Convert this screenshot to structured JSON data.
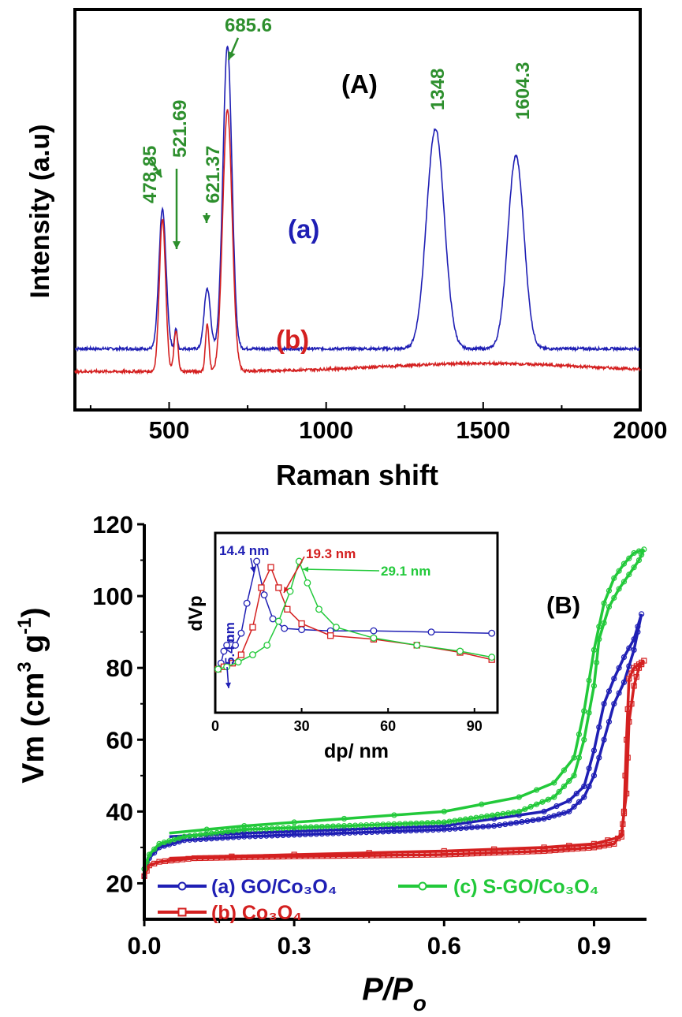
{
  "chart_data": [
    {
      "type": "line",
      "panel_label": "(A)",
      "xlabel": "Raman shift",
      "ylabel": "Intensity (a.u)",
      "xlim": [
        200,
        2000
      ],
      "x_ticks": [
        "500",
        "1000",
        "1500",
        "2000"
      ],
      "grid": false,
      "series": [
        {
          "name": "(a)",
          "color": "#1f1fb4",
          "baseline": 0.42,
          "peaks": [
            {
              "center": 478.85,
              "height": 2.08,
              "width": 16
            },
            {
              "center": 521.69,
              "height": 0.3,
              "width": 6
            },
            {
              "center": 621.37,
              "height": 0.9,
              "width": 14
            },
            {
              "center": 685.6,
              "height": 4.53,
              "width": 20
            },
            {
              "center": 1348,
              "height": 3.28,
              "width": 40
            },
            {
              "center": 1604.3,
              "height": 2.88,
              "width": 36
            }
          ]
        },
        {
          "name": "(b)",
          "color": "#d42020",
          "baseline": 0.08,
          "peaks": [
            {
              "center": 478.85,
              "height": 2.28,
              "width": 14
            },
            {
              "center": 521.69,
              "height": 0.6,
              "width": 9
            },
            {
              "center": 621.37,
              "height": 0.7,
              "width": 8
            },
            {
              "center": 685.6,
              "height": 3.9,
              "width": 21
            }
          ]
        }
      ],
      "annotations": [
        {
          "text": "478.85",
          "x": 478.85,
          "color": "#2d8f2d"
        },
        {
          "text": "521.69",
          "x": 521.69,
          "color": "#2d8f2d"
        },
        {
          "text": "621.37",
          "x": 621.37,
          "color": "#2d8f2d"
        },
        {
          "text": "685.6",
          "x": 685.6,
          "color": "#2d8f2d"
        },
        {
          "text": "1348",
          "x": 1348,
          "color": "#2d8f2d"
        },
        {
          "text": "1604.3",
          "x": 1604.3,
          "color": "#2d8f2d"
        }
      ]
    },
    {
      "type": "line",
      "panel_label": "(B)",
      "xlabel": "P/P",
      "xlabel_sub": "o",
      "ylabel": "Vm (cm",
      "ylabel_sup3": "3",
      "ylabel_mid": " g",
      "ylabel_sup": "-1",
      "ylabel_end": ")",
      "xlim": [
        0,
        1
      ],
      "ylim": [
        10,
        120
      ],
      "x_ticks": [
        "0.0",
        "0.3",
        "0.6",
        "0.9"
      ],
      "y_ticks": [
        "20",
        "40",
        "60",
        "80",
        "100",
        "120"
      ],
      "grid": false,
      "series": [
        {
          "name": "(a) GO/Co₃O₄",
          "color": "#1f1fb4",
          "adsorption": [
            [
              0,
              22
            ],
            [
              0.01,
              27
            ],
            [
              0.03,
              30
            ],
            [
              0.08,
              32
            ],
            [
              0.2,
              33
            ],
            [
              0.4,
              34
            ],
            [
              0.6,
              35
            ],
            [
              0.7,
              36
            ],
            [
              0.8,
              38
            ],
            [
              0.85,
              40
            ],
            [
              0.88,
              44
            ],
            [
              0.9,
              50
            ],
            [
              0.92,
              60
            ],
            [
              0.94,
              70
            ],
            [
              0.96,
              76
            ],
            [
              0.98,
              85
            ],
            [
              0.995,
              95
            ]
          ],
          "desorption": [
            [
              0.995,
              95
            ],
            [
              0.98,
              88
            ],
            [
              0.96,
              83
            ],
            [
              0.94,
              77
            ],
            [
              0.92,
              70
            ],
            [
              0.9,
              57
            ],
            [
              0.88,
              47
            ],
            [
              0.85,
              43
            ],
            [
              0.8,
              40
            ],
            [
              0.7,
              38
            ],
            [
              0.6,
              36
            ],
            [
              0.4,
              35
            ],
            [
              0.2,
              34
            ],
            [
              0.05,
              33
            ]
          ]
        },
        {
          "name": "(b) Co₃O₄",
          "color": "#d42020",
          "adsorption": [
            [
              0,
              22
            ],
            [
              0.01,
              25
            ],
            [
              0.03,
              26
            ],
            [
              0.1,
              27
            ],
            [
              0.3,
              27.5
            ],
            [
              0.6,
              28
            ],
            [
              0.8,
              29
            ],
            [
              0.9,
              30
            ],
            [
              0.94,
              31
            ],
            [
              0.955,
              34
            ],
            [
              0.965,
              45
            ],
            [
              0.97,
              65
            ],
            [
              0.98,
              75
            ],
            [
              0.99,
              80
            ],
            [
              1.0,
              82
            ]
          ],
          "desorption": [
            [
              1.0,
              82
            ],
            [
              0.99,
              81
            ],
            [
              0.98,
              80
            ],
            [
              0.97,
              77
            ],
            [
              0.965,
              60
            ],
            [
              0.96,
              40
            ],
            [
              0.955,
              33
            ],
            [
              0.9,
              31
            ],
            [
              0.8,
              30
            ],
            [
              0.6,
              29
            ],
            [
              0.3,
              28
            ],
            [
              0.05,
              27
            ]
          ]
        },
        {
          "name": "(c) S-GO/Co₃O₄",
          "color": "#22c93a",
          "adsorption": [
            [
              0,
              24
            ],
            [
              0.01,
              28
            ],
            [
              0.03,
              31
            ],
            [
              0.08,
              33
            ],
            [
              0.2,
              35
            ],
            [
              0.4,
              36
            ],
            [
              0.6,
              37
            ],
            [
              0.75,
              40
            ],
            [
              0.82,
              44
            ],
            [
              0.86,
              50
            ],
            [
              0.88,
              60
            ],
            [
              0.9,
              75
            ],
            [
              0.91,
              88
            ],
            [
              0.93,
              97
            ],
            [
              0.95,
              102
            ],
            [
              0.97,
              106
            ],
            [
              0.99,
              110
            ],
            [
              1.0,
              113
            ]
          ],
          "desorption": [
            [
              1.0,
              113
            ],
            [
              0.98,
              112
            ],
            [
              0.96,
              109
            ],
            [
              0.94,
              105
            ],
            [
              0.92,
              98
            ],
            [
              0.9,
              85
            ],
            [
              0.88,
              68
            ],
            [
              0.86,
              55
            ],
            [
              0.82,
              48
            ],
            [
              0.75,
              44
            ],
            [
              0.6,
              40
            ],
            [
              0.4,
              38
            ],
            [
              0.2,
              36
            ],
            [
              0.05,
              34
            ]
          ]
        }
      ],
      "legend": {
        "placement": "bottom-left"
      },
      "inset": {
        "xlabel": "dp/ nm",
        "ylabel": "dVp",
        "xlim": [
          0,
          98
        ],
        "x_ticks": [
          "0",
          "30",
          "60",
          "90"
        ],
        "series": [
          {
            "name": "GO/Co₃O₄",
            "color": "#1f1fb4",
            "points": [
              [
                1,
                0.1
              ],
              [
                2,
                0.15
              ],
              [
                3,
                0.25
              ],
              [
                4,
                0.3
              ],
              [
                5.4,
                0.35
              ],
              [
                7,
                0.3
              ],
              [
                9,
                0.4
              ],
              [
                11,
                0.65
              ],
              [
                14.4,
                1.0
              ],
              [
                17,
                0.72
              ],
              [
                20,
                0.52
              ],
              [
                24,
                0.44
              ],
              [
                30,
                0.43
              ],
              [
                40,
                0.42
              ],
              [
                55,
                0.42
              ],
              [
                75,
                0.41
              ],
              [
                96,
                0.4
              ]
            ]
          },
          {
            "name": "Co₃O₄",
            "color": "#d42020",
            "points": [
              [
                1,
                0.1
              ],
              [
                3,
                0.12
              ],
              [
                6,
                0.15
              ],
              [
                9,
                0.22
              ],
              [
                13,
                0.45
              ],
              [
                16,
                0.78
              ],
              [
                19.3,
                0.95
              ],
              [
                22,
                0.78
              ],
              [
                25,
                0.6
              ],
              [
                30,
                0.48
              ],
              [
                40,
                0.38
              ],
              [
                55,
                0.35
              ],
              [
                70,
                0.3
              ],
              [
                85,
                0.24
              ],
              [
                96,
                0.18
              ]
            ]
          },
          {
            "name": "S-GO/Co₃O₄",
            "color": "#22c93a",
            "points": [
              [
                1,
                0.1
              ],
              [
                4,
                0.12
              ],
              [
                8,
                0.16
              ],
              [
                13,
                0.22
              ],
              [
                18,
                0.3
              ],
              [
                22,
                0.5
              ],
              [
                26,
                0.75
              ],
              [
                29.1,
                1.0
              ],
              [
                32,
                0.82
              ],
              [
                36,
                0.6
              ],
              [
                42,
                0.45
              ],
              [
                55,
                0.36
              ],
              [
                70,
                0.3
              ],
              [
                85,
                0.25
              ],
              [
                96,
                0.2
              ]
            ]
          }
        ],
        "annotations": [
          {
            "text": "14.4 nm",
            "x": 14.4,
            "color": "#1f1fb4"
          },
          {
            "text": "19.3 nm",
            "x": 19.3,
            "color": "#d42020"
          },
          {
            "text": "29.1 nm",
            "x": 29.1,
            "color": "#22c93a"
          },
          {
            "text": "5.4 nm",
            "x": 5.4,
            "color": "#1f1fb4"
          }
        ]
      }
    }
  ]
}
